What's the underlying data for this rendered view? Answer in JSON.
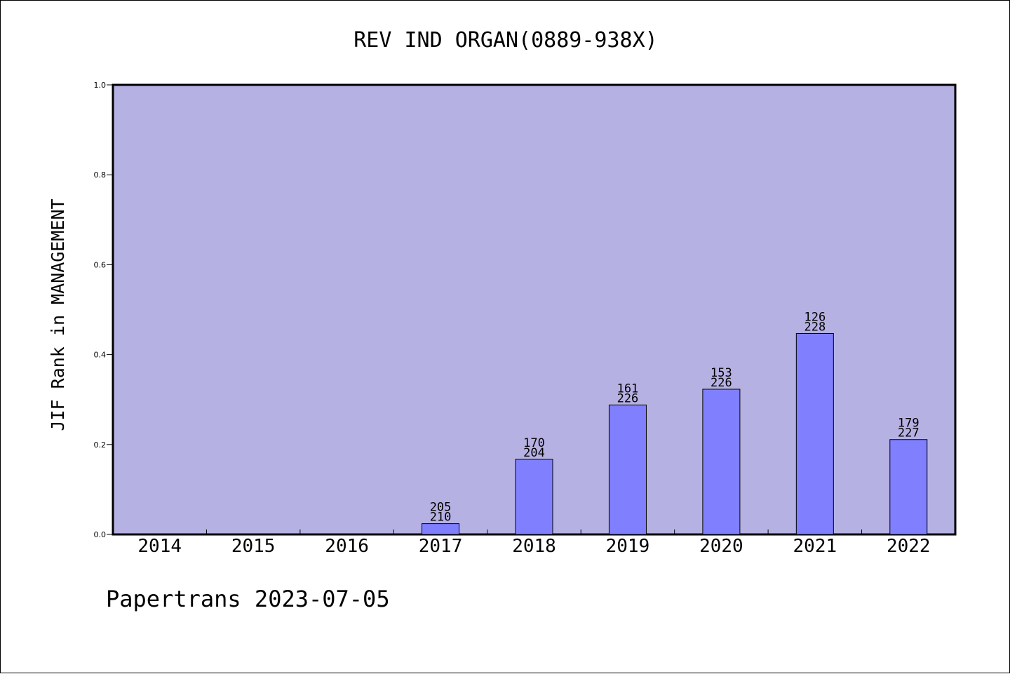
{
  "chart_data": {
    "type": "bar",
    "title": "REV IND ORGAN(0889-938X)",
    "ylabel": "JIF Rank in MANAGEMENT",
    "xlabel": "",
    "ylim": [
      0,
      1.0
    ],
    "yticks": [
      "0.0",
      "0.2",
      "0.4",
      "0.6",
      "0.8",
      "1.0"
    ],
    "categories": [
      "2014",
      "2015",
      "2016",
      "2017",
      "2018",
      "2019",
      "2020",
      "2021",
      "2022"
    ],
    "values": [
      null,
      null,
      null,
      0.024,
      0.167,
      0.288,
      0.323,
      0.447,
      0.211
    ],
    "labels": [
      null,
      null,
      null,
      {
        "rank": "205",
        "total": "210"
      },
      {
        "rank": "170",
        "total": "204"
      },
      {
        "rank": "161",
        "total": "226"
      },
      {
        "rank": "153",
        "total": "226"
      },
      {
        "rank": "126",
        "total": "228"
      },
      {
        "rank": "179",
        "total": "227"
      }
    ],
    "grid": false,
    "colors": {
      "plot_background": "#b6b1e3",
      "bar_fill": "#8080ff",
      "bar_stroke": "#000000",
      "axis": "#000000"
    }
  },
  "footer": {
    "source_text": "Papertrans 2023-07-05"
  }
}
